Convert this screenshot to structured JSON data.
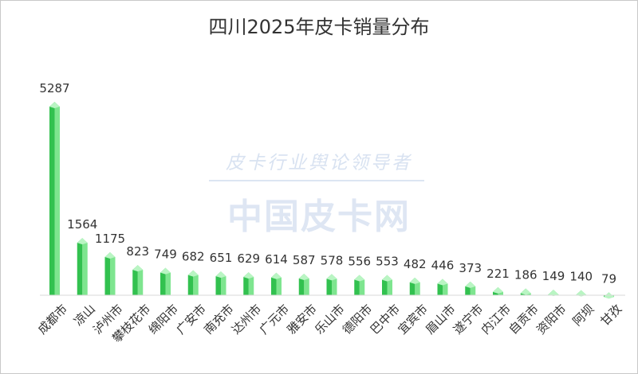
{
  "chart_data": {
    "type": "bar",
    "title": "四川2025年皮卡销量分布",
    "categories": [
      "成都市",
      "凉山",
      "泸州市",
      "攀枝花市",
      "绵阳市",
      "广安市",
      "南充市",
      "达州市",
      "广元市",
      "雅安市",
      "乐山市",
      "德阳市",
      "巴中市",
      "宜宾市",
      "眉山市",
      "遂宁市",
      "内江市",
      "自贡市",
      "资阳市",
      "阿坝",
      "甘孜"
    ],
    "values": [
      5287,
      1564,
      1175,
      823,
      749,
      682,
      651,
      629,
      614,
      587,
      578,
      556,
      553,
      482,
      446,
      373,
      221,
      186,
      149,
      140,
      79
    ],
    "ylim": [
      0,
      5500
    ],
    "grid": false,
    "colors": {
      "bar_front": "#32c14f",
      "bar_side": "#7ee58f",
      "bar_top": "#b9f5c3"
    }
  },
  "watermark": {
    "line1": "皮卡行业舆论领导者",
    "line2": "中国皮卡网"
  }
}
